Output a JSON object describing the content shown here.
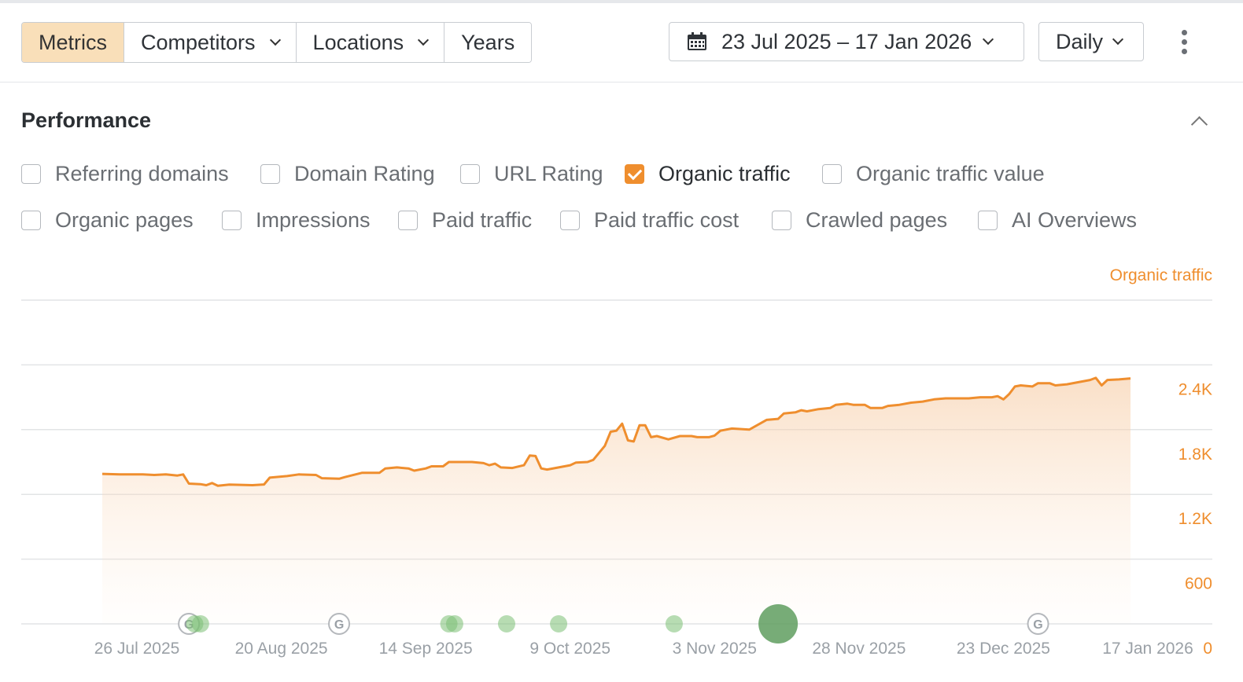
{
  "toolbar": {
    "tabs": [
      {
        "label": "Metrics",
        "active": true,
        "dropdown": false
      },
      {
        "label": "Competitors",
        "active": false,
        "dropdown": true
      },
      {
        "label": "Locations",
        "active": false,
        "dropdown": true
      },
      {
        "label": "Years",
        "active": false,
        "dropdown": false
      }
    ],
    "date_range": "23 Jul 2025 – 17 Jan 2026",
    "date_icon": "calendar-icon",
    "granularity": "Daily",
    "more_icon": "kebab-menu-icon"
  },
  "section": {
    "title": "Performance",
    "collapse_icon": "chevron-up-icon"
  },
  "metrics": [
    {
      "label": "Referring domains",
      "checked": false
    },
    {
      "label": "Domain Rating",
      "checked": false
    },
    {
      "label": "URL Rating",
      "checked": false
    },
    {
      "label": "Organic traffic",
      "checked": true
    },
    {
      "label": "Organic traffic value",
      "checked": false
    },
    {
      "label": "Organic pages",
      "checked": false
    },
    {
      "label": "Impressions",
      "checked": false
    },
    {
      "label": "Paid traffic",
      "checked": false
    },
    {
      "label": "Paid traffic cost",
      "checked": false
    },
    {
      "label": "Crawled pages",
      "checked": false
    },
    {
      "label": "AI Overviews",
      "checked": false
    }
  ],
  "colors": {
    "accent": "#ef8e2e",
    "active_tab": "#f9dfb9",
    "event_marker": "#7cbf74",
    "event_marker_large": "#5f9e5f",
    "grid": "#e2e4e6",
    "axis_label": "#9aa0a6"
  },
  "chart_data": {
    "type": "area",
    "series": [
      {
        "name": "Organic traffic",
        "color": "#ef8e2e",
        "points": [
          [
            "2025-07-23",
            1390
          ],
          [
            "2025-07-26",
            1385
          ],
          [
            "2025-07-30",
            1385
          ],
          [
            "2025-08-01",
            1380
          ],
          [
            "2025-08-03",
            1385
          ],
          [
            "2025-08-05",
            1375
          ],
          [
            "2025-08-06",
            1385
          ],
          [
            "2025-08-07",
            1300
          ],
          [
            "2025-08-09",
            1295
          ],
          [
            "2025-08-10",
            1285
          ],
          [
            "2025-08-11",
            1305
          ],
          [
            "2025-08-12",
            1280
          ],
          [
            "2025-08-14",
            1290
          ],
          [
            "2025-08-18",
            1285
          ],
          [
            "2025-08-20",
            1292
          ],
          [
            "2025-08-21",
            1355
          ],
          [
            "2025-08-24",
            1370
          ],
          [
            "2025-08-26",
            1385
          ],
          [
            "2025-08-29",
            1380
          ],
          [
            "2025-08-30",
            1350
          ],
          [
            "2025-09-02",
            1345
          ],
          [
            "2025-09-03",
            1360
          ],
          [
            "2025-09-06",
            1400
          ],
          [
            "2025-09-09",
            1400
          ],
          [
            "2025-09-10",
            1440
          ],
          [
            "2025-09-12",
            1450
          ],
          [
            "2025-09-14",
            1440
          ],
          [
            "2025-09-15",
            1420
          ],
          [
            "2025-09-17",
            1440
          ],
          [
            "2025-09-18",
            1460
          ],
          [
            "2025-09-20",
            1460
          ],
          [
            "2025-09-21",
            1500
          ],
          [
            "2025-09-25",
            1500
          ],
          [
            "2025-09-27",
            1490
          ],
          [
            "2025-09-28",
            1470
          ],
          [
            "2025-09-29",
            1485
          ],
          [
            "2025-09-30",
            1450
          ],
          [
            "2025-10-02",
            1445
          ],
          [
            "2025-10-04",
            1470
          ],
          [
            "2025-10-05",
            1560
          ],
          [
            "2025-10-06",
            1555
          ],
          [
            "2025-10-07",
            1440
          ],
          [
            "2025-10-08",
            1430
          ],
          [
            "2025-10-10",
            1450
          ],
          [
            "2025-10-12",
            1470
          ],
          [
            "2025-10-13",
            1495
          ],
          [
            "2025-10-15",
            1500
          ],
          [
            "2025-10-16",
            1520
          ],
          [
            "2025-10-18",
            1650
          ],
          [
            "2025-10-19",
            1780
          ],
          [
            "2025-10-20",
            1790
          ],
          [
            "2025-10-21",
            1855
          ],
          [
            "2025-10-22",
            1700
          ],
          [
            "2025-10-23",
            1690
          ],
          [
            "2025-10-24",
            1840
          ],
          [
            "2025-10-25",
            1840
          ],
          [
            "2025-10-26",
            1730
          ],
          [
            "2025-10-27",
            1740
          ],
          [
            "2025-10-29",
            1710
          ],
          [
            "2025-10-31",
            1740
          ],
          [
            "2025-11-02",
            1740
          ],
          [
            "2025-11-03",
            1730
          ],
          [
            "2025-11-05",
            1730
          ],
          [
            "2025-11-06",
            1745
          ],
          [
            "2025-11-07",
            1790
          ],
          [
            "2025-11-09",
            1810
          ],
          [
            "2025-11-12",
            1800
          ],
          [
            "2025-11-13",
            1830
          ],
          [
            "2025-11-15",
            1890
          ],
          [
            "2025-11-17",
            1900
          ],
          [
            "2025-11-18",
            1950
          ],
          [
            "2025-11-20",
            1960
          ],
          [
            "2025-11-21",
            1980
          ],
          [
            "2025-11-22",
            1970
          ],
          [
            "2025-11-24",
            1990
          ],
          [
            "2025-11-26",
            2000
          ],
          [
            "2025-11-27",
            2030
          ],
          [
            "2025-11-29",
            2040
          ],
          [
            "2025-11-30",
            2030
          ],
          [
            "2025-12-02",
            2030
          ],
          [
            "2025-12-03",
            2000
          ],
          [
            "2025-12-05",
            2000
          ],
          [
            "2025-12-06",
            2020
          ],
          [
            "2025-12-08",
            2030
          ],
          [
            "2025-12-10",
            2050
          ],
          [
            "2025-12-12",
            2060
          ],
          [
            "2025-12-14",
            2080
          ],
          [
            "2025-12-16",
            2090
          ],
          [
            "2025-12-20",
            2090
          ],
          [
            "2025-12-22",
            2100
          ],
          [
            "2025-12-24",
            2100
          ],
          [
            "2025-12-25",
            2110
          ],
          [
            "2025-12-26",
            2080
          ],
          [
            "2025-12-27",
            2130
          ],
          [
            "2025-12-28",
            2200
          ],
          [
            "2025-12-29",
            2210
          ],
          [
            "2025-12-31",
            2200
          ],
          [
            "2026-01-01",
            2230
          ],
          [
            "2026-01-03",
            2230
          ],
          [
            "2026-01-04",
            2210
          ],
          [
            "2026-01-06",
            2220
          ],
          [
            "2026-01-08",
            2240
          ],
          [
            "2026-01-10",
            2260
          ],
          [
            "2026-01-11",
            2280
          ],
          [
            "2026-01-12",
            2210
          ],
          [
            "2026-01-13",
            2260
          ],
          [
            "2026-01-15",
            2265
          ],
          [
            "2026-01-17",
            2275
          ]
        ]
      }
    ],
    "series_label": "Organic traffic",
    "x_ticks": [
      "26 Jul 2025",
      "20 Aug 2025",
      "14 Sep 2025",
      "9 Oct 2025",
      "3 Nov 2025",
      "28 Nov 2025",
      "23 Dec 2025",
      "17 Jan 2026"
    ],
    "y_ticks": [
      "0",
      "600",
      "1.2K",
      "1.8K",
      "2.4K"
    ],
    "ylim": [
      0,
      3000
    ],
    "grid": true,
    "y_axis_position": "right",
    "events": [
      {
        "kind": "google-update",
        "label": "G",
        "date": "2025-08-07"
      },
      {
        "kind": "note",
        "date": "2025-08-08",
        "size": "small"
      },
      {
        "kind": "note",
        "date": "2025-08-09",
        "size": "small"
      },
      {
        "kind": "google-update",
        "label": "G",
        "date": "2025-09-02"
      },
      {
        "kind": "note",
        "date": "2025-09-21",
        "size": "small"
      },
      {
        "kind": "note",
        "date": "2025-09-22",
        "size": "small"
      },
      {
        "kind": "note",
        "date": "2025-10-01",
        "size": "small"
      },
      {
        "kind": "note",
        "date": "2025-10-10",
        "size": "small"
      },
      {
        "kind": "note",
        "date": "2025-10-30",
        "size": "small"
      },
      {
        "kind": "note",
        "date": "2025-11-17",
        "size": "large"
      },
      {
        "kind": "google-update",
        "label": "G",
        "date": "2026-01-01"
      }
    ]
  }
}
